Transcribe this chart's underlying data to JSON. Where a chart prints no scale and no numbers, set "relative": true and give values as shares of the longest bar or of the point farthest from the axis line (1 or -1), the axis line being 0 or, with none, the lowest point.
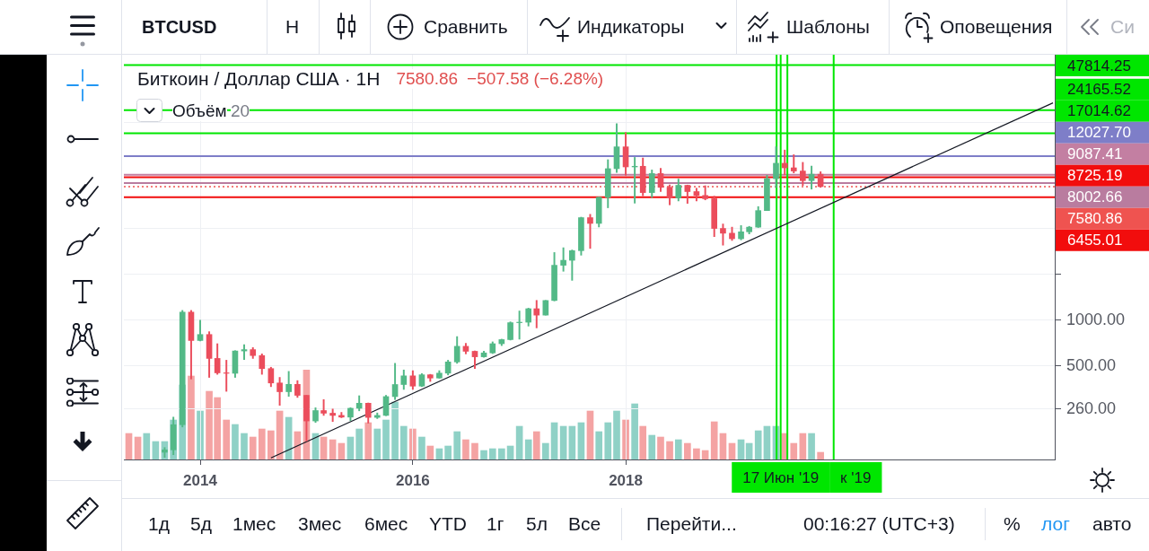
{
  "chart_data": [
    {
      "type": "candlestick",
      "title": "Биткоин / Доллар США · 1H",
      "annotations": [
        "BTCUSD",
        "H",
        "Сравнить",
        "Индикаторы",
        "Шаблоны",
        "Оповещения",
        "Си",
        "7580.86",
        "−507.58 (−6.28%)",
        "Объём",
        "20",
        "1д",
        "5д",
        "1мес",
        "3мес",
        "6мес",
        "YTD",
        "1г",
        "5л",
        "Все",
        "Перейти...",
        "00:16:27 (UTC+3)",
        "%",
        "лог",
        "авто"
      ],
      "x": [
        "2013-09",
        "2013-10",
        "2013-11",
        "2013-12",
        "2014-01",
        "2014-02",
        "2014-03",
        "2014-04",
        "2014-05",
        "2014-06",
        "2014-07",
        "2014-08",
        "2014-09",
        "2014-10",
        "2014-11",
        "2014-12",
        "2015-01",
        "2015-02",
        "2015-03",
        "2015-04",
        "2015-05",
        "2015-06",
        "2015-07",
        "2015-08",
        "2015-09",
        "2015-10",
        "2015-11",
        "2015-12",
        "2016-01",
        "2016-02",
        "2016-03",
        "2016-04",
        "2016-05",
        "2016-06",
        "2016-07",
        "2016-08",
        "2016-09",
        "2016-10",
        "2016-11",
        "2016-12",
        "2017-01",
        "2017-02",
        "2017-03",
        "2017-04",
        "2017-05",
        "2017-06",
        "2017-07",
        "2017-08",
        "2017-09",
        "2017-10",
        "2017-11",
        "2017-12",
        "2018-01",
        "2018-02",
        "2018-03",
        "2018-04",
        "2018-05",
        "2018-06",
        "2018-07",
        "2018-08",
        "2018-09",
        "2018-10",
        "2018-11",
        "2018-12",
        "2019-01",
        "2019-02",
        "2019-03",
        "2019-04",
        "2019-05",
        "2019-06",
        "2019-07",
        "2019-08",
        "2019-09",
        "2019-10",
        "2019-11"
      ],
      "ohlc": [
        [
          135,
          145,
          125,
          140
        ],
        [
          140,
          230,
          130,
          205
        ],
        [
          205,
          1160,
          198,
          1130
        ],
        [
          1130,
          1160,
          410,
          735
        ],
        [
          735,
          1000,
          730,
          805
        ],
        [
          805,
          840,
          420,
          560
        ],
        [
          560,
          700,
          440,
          450
        ],
        [
          450,
          545,
          340,
          447
        ],
        [
          447,
          630,
          420,
          627
        ],
        [
          627,
          690,
          550,
          640
        ],
        [
          640,
          660,
          560,
          585
        ],
        [
          585,
          600,
          440,
          480
        ],
        [
          480,
          490,
          365,
          386
        ],
        [
          386,
          420,
          275,
          338
        ],
        [
          338,
          460,
          315,
          378
        ],
        [
          378,
          400,
          310,
          320
        ],
        [
          320,
          320,
          160,
          217
        ],
        [
          217,
          265,
          212,
          254
        ],
        [
          254,
          300,
          236,
          244
        ],
        [
          244,
          260,
          215,
          236
        ],
        [
          236,
          247,
          228,
          230
        ],
        [
          230,
          265,
          218,
          263
        ],
        [
          263,
          318,
          253,
          284
        ],
        [
          284,
          285,
          210,
          229
        ],
        [
          229,
          245,
          225,
          236
        ],
        [
          236,
          320,
          235,
          314
        ],
        [
          314,
          520,
          300,
          377
        ],
        [
          377,
          470,
          350,
          430
        ],
        [
          430,
          465,
          350,
          368
        ],
        [
          368,
          445,
          365,
          437
        ],
        [
          437,
          440,
          395,
          416
        ],
        [
          416,
          465,
          415,
          448
        ],
        [
          448,
          545,
          436,
          531
        ],
        [
          531,
          780,
          520,
          673
        ],
        [
          673,
          704,
          600,
          624
        ],
        [
          624,
          627,
          480,
          574
        ],
        [
          574,
          625,
          570,
          609
        ],
        [
          609,
          720,
          603,
          700
        ],
        [
          700,
          750,
          680,
          745
        ],
        [
          745,
          975,
          740,
          963
        ],
        [
          963,
          1150,
          750,
          970
        ],
        [
          970,
          1200,
          915,
          1190
        ],
        [
          1190,
          1350,
          890,
          1080
        ],
        [
          1080,
          1350,
          1080,
          1348
        ],
        [
          1348,
          2790,
          1340,
          2300
        ],
        [
          2300,
          3000,
          2100,
          2480
        ],
        [
          2480,
          2900,
          1830,
          2870
        ],
        [
          2870,
          4770,
          2680,
          4735
        ],
        [
          4735,
          4980,
          2970,
          4340
        ],
        [
          4340,
          6450,
          4110,
          6450
        ],
        [
          6450,
          11400,
          5500,
          9950
        ],
        [
          9950,
          19700,
          9400,
          13860
        ],
        [
          13860,
          17200,
          9000,
          10220
        ],
        [
          10220,
          11800,
          5900,
          10320
        ],
        [
          10320,
          11700,
          6600,
          6925
        ],
        [
          6925,
          9760,
          6430,
          9240
        ],
        [
          9240,
          9990,
          7030,
          7500
        ],
        [
          7500,
          7780,
          5750,
          6390
        ],
        [
          6390,
          8500,
          6100,
          7730
        ],
        [
          7730,
          7760,
          5880,
          7030
        ],
        [
          7030,
          7400,
          6100,
          6630
        ],
        [
          6630,
          7680,
          6200,
          6310
        ],
        [
          6310,
          6560,
          3550,
          4020
        ],
        [
          4020,
          4300,
          3120,
          3740
        ],
        [
          3740,
          4100,
          3350,
          3440
        ],
        [
          3440,
          4200,
          3380,
          3820
        ],
        [
          3820,
          4150,
          3700,
          4100
        ],
        [
          4100,
          5600,
          4080,
          5270
        ],
        [
          5270,
          9000,
          5270,
          8550
        ],
        [
          8550,
          13880,
          7450,
          10800
        ],
        [
          10800,
          13200,
          9070,
          10080
        ],
        [
          10080,
          12300,
          9330,
          9600
        ],
        [
          9600,
          10950,
          7710,
          8300
        ],
        [
          8300,
          10350,
          7300,
          9150
        ],
        [
          9150,
          9500,
          7500,
          7580.86
        ]
      ],
      "colors": [
        "#53b987",
        "#53b987",
        "#53b987",
        "#eb4d5c",
        "#53b987",
        "#eb4d5c",
        "#eb4d5c",
        "#eb4d5c",
        "#53b987",
        "#53b987",
        "#eb4d5c",
        "#eb4d5c",
        "#eb4d5c",
        "#eb4d5c",
        "#53b987",
        "#eb4d5c",
        "#eb4d5c",
        "#53b987",
        "#eb4d5c",
        "#eb4d5c",
        "#eb4d5c",
        "#53b987",
        "#53b987",
        "#eb4d5c",
        "#53b987",
        "#53b987",
        "#53b987",
        "#53b987",
        "#eb4d5c",
        "#53b987",
        "#eb4d5c",
        "#53b987",
        "#53b987",
        "#53b987",
        "#eb4d5c",
        "#eb4d5c",
        "#53b987",
        "#53b987",
        "#53b987",
        "#53b987",
        "#53b987",
        "#53b987",
        "#eb4d5c",
        "#53b987",
        "#53b987",
        "#53b987",
        "#53b987",
        "#53b987",
        "#eb4d5c",
        "#53b987",
        "#53b987",
        "#53b987",
        "#eb4d5c",
        "#53b987",
        "#eb4d5c",
        "#53b987",
        "#eb4d5c",
        "#eb4d5c",
        "#53b987",
        "#eb4d5c",
        "#eb4d5c",
        "#eb4d5c",
        "#eb4d5c",
        "#eb4d5c",
        "#eb4d5c",
        "#53b987",
        "#53b987",
        "#53b987",
        "#53b987",
        "#53b987",
        "#eb4d5c",
        "#eb4d5c",
        "#eb4d5c",
        "#53b987",
        "#eb4d5c"
      ],
      "series": [
        {
          "type": "line",
          "x": [
            "2014-09-01",
            "2022-01-07"
          ],
          "values": [
            124,
            27000
          ],
          "color": "#131722"
        }
      ],
      "xlim": [
        "2013-04-14",
        "2022-01-13"
      ],
      "xticks": [
        "2014",
        "2016",
        "2018"
      ],
      "ylim": [
        121,
        56000
      ],
      "yticks": [
        {
          "value": 260,
          "label": "260.00"
        },
        {
          "value": 500,
          "label": "500.00"
        },
        {
          "value": 1000,
          "label": "1000.00"
        },
        {
          "value": 2000,
          "label": null
        },
        {
          "value": 4000,
          "label": null
        },
        {
          "value": 20000,
          "label": null
        }
      ],
      "log": true,
      "grid": true,
      "ref_lines": [
        {
          "axis": "y",
          "value": 47814.25,
          "label": "47814.25",
          "color": "#00e600"
        },
        {
          "axis": "y",
          "value": 24165.52,
          "label": "24165.52",
          "color": "#00e600"
        },
        {
          "axis": "y",
          "value": 17014.62,
          "label": "17014.62",
          "color": "#00e600"
        },
        {
          "axis": "y",
          "value": 12027.7,
          "label": "12027.70",
          "color": "#7e7ec8"
        },
        {
          "axis": "y",
          "value": 9087.41,
          "label": "9087.41",
          "color": "#c37fa2"
        },
        {
          "axis": "y",
          "value": 8725.19,
          "label": "8725.19",
          "color": "#f20d0d"
        },
        {
          "axis": "y",
          "value": 8002.66,
          "label": "8002.66",
          "color": "#b97c9f"
        },
        {
          "axis": "y",
          "value": 7580.86,
          "label": "7580.86",
          "color": "#ef5350",
          "line_style": "dotted"
        },
        {
          "axis": "y",
          "value": 6455.01,
          "label": "6455.01",
          "color": "#f20d0d"
        },
        {
          "axis": "x",
          "value": "2019-06-03",
          "color": "#00e600"
        },
        {
          "axis": "x",
          "value": "2019-06-17",
          "label": "17 Июн '19",
          "color": "#00e600"
        },
        {
          "axis": "x",
          "value": "2019-07-10",
          "color": "#00e600"
        },
        {
          "axis": "x",
          "value": "2019-12-16",
          "label": "к '19",
          "color": "#00e600"
        }
      ]
    },
    {
      "type": "bar",
      "relative": true,
      "tick_labels": false,
      "xlim": [
        "2013-04-14",
        "2022-01-13"
      ],
      "x": [
        "2013-05",
        "2013-06",
        "2013-07",
        "2013-08",
        "2013-09",
        "2013-10",
        "2013-11",
        "2013-12",
        "2014-01",
        "2014-02",
        "2014-03",
        "2014-04",
        "2014-05",
        "2014-06",
        "2014-07",
        "2014-08",
        "2014-09",
        "2014-10",
        "2014-11",
        "2014-12",
        "2015-01",
        "2015-02",
        "2015-03",
        "2015-04",
        "2015-05",
        "2015-06",
        "2015-07",
        "2015-08",
        "2015-09",
        "2015-10",
        "2015-11",
        "2015-12",
        "2016-01",
        "2016-02",
        "2016-03",
        "2016-04",
        "2016-05",
        "2016-06",
        "2016-07",
        "2016-08",
        "2016-09",
        "2016-10",
        "2016-11",
        "2016-12",
        "2017-01",
        "2017-02",
        "2017-03",
        "2017-04",
        "2017-05",
        "2017-06",
        "2017-07",
        "2017-08",
        "2017-09",
        "2017-10",
        "2017-11",
        "2017-12",
        "2018-01",
        "2018-02",
        "2018-03",
        "2018-04",
        "2018-05",
        "2018-06",
        "2018-07",
        "2018-08",
        "2018-09",
        "2018-10",
        "2018-11",
        "2018-12",
        "2019-01",
        "2019-02",
        "2019-03",
        "2019-04",
        "2019-05",
        "2019-06",
        "2019-07",
        "2019-08",
        "2019-09",
        "2019-10",
        "2019-11"
      ],
      "values": [
        0.29,
        0.25,
        0.29,
        0.2,
        0.2,
        0.44,
        0.83,
        0.93,
        0.54,
        0.76,
        0.69,
        0.44,
        0.39,
        0.29,
        0.25,
        0.34,
        0.32,
        0.54,
        0.47,
        0.31,
        1,
        0.29,
        0.25,
        0.22,
        0.18,
        0.25,
        0.34,
        0.41,
        0.34,
        0.44,
        0.64,
        0.37,
        0.34,
        0.25,
        0.15,
        0.12,
        0.15,
        0.31,
        0.22,
        0.18,
        0.1,
        0.12,
        0.12,
        0.15,
        0.37,
        0.22,
        0.31,
        0.18,
        0.41,
        0.37,
        0.37,
        0.41,
        0.54,
        0.31,
        0.41,
        0.54,
        0.44,
        0.62,
        0.37,
        0.27,
        0.25,
        0.2,
        0.22,
        0.18,
        0.12,
        0.1,
        0.42,
        0.29,
        0.18,
        0.22,
        0.18,
        0.32,
        0.37,
        0.37,
        0.29,
        0.18,
        0.29,
        0.29,
        0.08
      ],
      "colors": [
        "#f4a3a3",
        "#f4a3a3",
        "#8fd1c6",
        "#8fd1c6",
        "#8fd1c6",
        "#8fd1c6",
        "#8fd1c6",
        "#f4a3a3",
        "#8fd1c6",
        "#f4a3a3",
        "#f4a3a3",
        "#f4a3a3",
        "#8fd1c6",
        "#8fd1c6",
        "#f4a3a3",
        "#f4a3a3",
        "#f4a3a3",
        "#f4a3a3",
        "#8fd1c6",
        "#f4a3a3",
        "#f4a3a3",
        "#8fd1c6",
        "#f4a3a3",
        "#f4a3a3",
        "#f4a3a3",
        "#8fd1c6",
        "#8fd1c6",
        "#f4a3a3",
        "#8fd1c6",
        "#8fd1c6",
        "#8fd1c6",
        "#8fd1c6",
        "#f4a3a3",
        "#8fd1c6",
        "#f4a3a3",
        "#8fd1c6",
        "#8fd1c6",
        "#8fd1c6",
        "#f4a3a3",
        "#f4a3a3",
        "#8fd1c6",
        "#8fd1c6",
        "#8fd1c6",
        "#8fd1c6",
        "#8fd1c6",
        "#8fd1c6",
        "#f4a3a3",
        "#8fd1c6",
        "#8fd1c6",
        "#8fd1c6",
        "#8fd1c6",
        "#8fd1c6",
        "#f4a3a3",
        "#8fd1c6",
        "#8fd1c6",
        "#8fd1c6",
        "#f4a3a3",
        "#8fd1c6",
        "#f4a3a3",
        "#8fd1c6",
        "#f4a3a3",
        "#f4a3a3",
        "#8fd1c6",
        "#f4a3a3",
        "#f4a3a3",
        "#f4a3a3",
        "#f4a3a3",
        "#f4a3a3",
        "#f4a3a3",
        "#8fd1c6",
        "#8fd1c6",
        "#8fd1c6",
        "#8fd1c6",
        "#8fd1c6",
        "#f4a3a3",
        "#f4a3a3",
        "#f4a3a3",
        "#8fd1c6",
        "#f4a3a3"
      ]
    }
  ]
}
